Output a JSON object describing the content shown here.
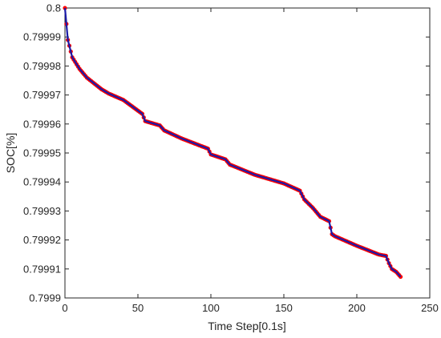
{
  "chart_data": {
    "type": "line",
    "title": "",
    "xlabel": "Time Step[0.1s]",
    "ylabel": "SOC[%]",
    "xlim": [
      0,
      250
    ],
    "ylim": [
      0.7999,
      0.8
    ],
    "x_ticks": [
      0,
      50,
      100,
      150,
      200,
      250
    ],
    "x_tick_labels": [
      "0",
      "50",
      "100",
      "150",
      "200",
      "250"
    ],
    "y_ticks": [
      0.7999,
      0.79991,
      0.79992,
      0.79993,
      0.79994,
      0.79995,
      0.79996,
      0.79997,
      0.79998,
      0.79999,
      0.8
    ],
    "y_tick_labels": [
      "0.7999",
      "0.79991",
      "0.79992",
      "0.79993",
      "0.79994",
      "0.79995",
      "0.79996",
      "0.79997",
      "0.79998",
      "0.79999",
      "0.8"
    ],
    "grid": false,
    "legend": "none",
    "series": [
      {
        "marker_color": "#ff0000",
        "line_color": "#1a1aa8",
        "points": [
          [
            0,
            0.8
          ],
          [
            2,
            0.799989
          ],
          [
            5,
            0.799983
          ],
          [
            10,
            0.799979
          ],
          [
            15,
            0.799976
          ],
          [
            20,
            0.799974
          ],
          [
            25,
            0.799972
          ],
          [
            30,
            0.7999705
          ],
          [
            40,
            0.7999683
          ],
          [
            53,
            0.7999635
          ],
          [
            55,
            0.799961
          ],
          [
            65,
            0.7999595
          ],
          [
            68,
            0.7999578
          ],
          [
            80,
            0.799955
          ],
          [
            98,
            0.7999515
          ],
          [
            100,
            0.7999495
          ],
          [
            110,
            0.7999478
          ],
          [
            113,
            0.799946
          ],
          [
            130,
            0.7999425
          ],
          [
            150,
            0.7999395
          ],
          [
            161,
            0.799937
          ],
          [
            164,
            0.799934
          ],
          [
            170,
            0.799931
          ],
          [
            175,
            0.799928
          ],
          [
            181,
            0.7999265
          ],
          [
            183,
            0.799922
          ],
          [
            185,
            0.7999213
          ],
          [
            200,
            0.799918
          ],
          [
            215,
            0.799915
          ],
          [
            220,
            0.7999145
          ],
          [
            222,
            0.799912
          ],
          [
            224,
            0.79991
          ],
          [
            227,
            0.799909
          ],
          [
            230,
            0.7999073
          ]
        ]
      }
    ]
  }
}
